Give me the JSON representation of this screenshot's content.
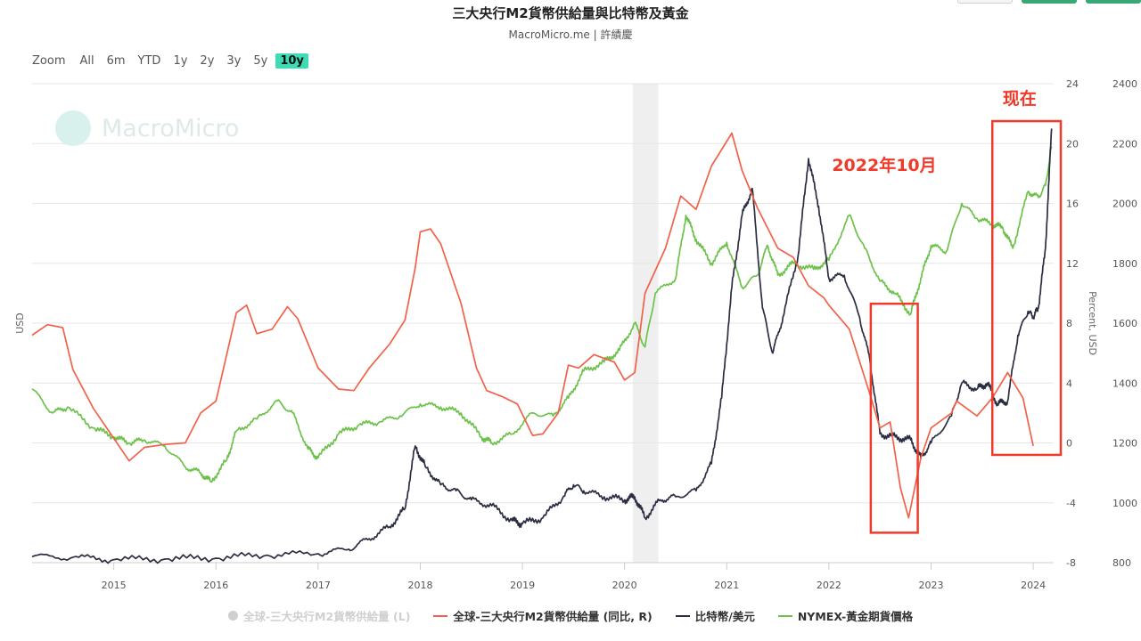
{
  "page": {
    "title": "三大央行M2貨幣供給量與比特幣及黃金",
    "subtitle": "MacroMicro.me | 許績慶",
    "watermark": "MacroMicro"
  },
  "zoom": {
    "label": "Zoom",
    "options": [
      "All",
      "6m",
      "YTD",
      "1y",
      "2y",
      "3y",
      "5y",
      "10y"
    ],
    "active": "10y"
  },
  "legend": [
    {
      "label": "全球-三大央行M2貨幣供給量 (L)",
      "color": "#cfcfcf",
      "enabled": false
    },
    {
      "label": "全球-三大央行M2貨幣供給量 (同比, R)",
      "color": "#f0624a",
      "enabled": true
    },
    {
      "label": "比特幣/美元",
      "color": "#2b2d42",
      "enabled": true
    },
    {
      "label": "NYMEX-黃金期貨價格",
      "color": "#6cc24a",
      "enabled": true
    }
  ],
  "annotations": {
    "oct2022_label": "2022年10月",
    "now_label": "现在",
    "color": "#f03a2a"
  },
  "chart_data": {
    "type": "line",
    "x_range": [
      2014.2,
      2024.2
    ],
    "x_ticks": [
      "2015",
      "2016",
      "2017",
      "2018",
      "2019",
      "2020",
      "2021",
      "2022",
      "2023",
      "2024"
    ],
    "left_axis_label": "USD",
    "right_axis_label": "Percent, USD",
    "percent_axis": {
      "min": -8,
      "max": 24,
      "ticks": [
        "24",
        "20",
        "16",
        "12",
        "8",
        "4",
        "0",
        "-4",
        "-8"
      ]
    },
    "usd_axis": {
      "min": 800,
      "max": 2400,
      "ticks": [
        "2400",
        "2200",
        "2000",
        "1800",
        "1600",
        "1400",
        "1200",
        "1000",
        "800"
      ]
    },
    "shaded_period": [
      2020.08,
      2020.33
    ],
    "series": [
      {
        "name": "全球-三大央行M2貨幣供給量 (同比, R)",
        "axis": "percent",
        "color": "#f0624a",
        "points": [
          [
            2014.2,
            7.2
          ],
          [
            2014.35,
            7.9
          ],
          [
            2014.5,
            7.7
          ],
          [
            2014.6,
            4.9
          ],
          [
            2014.8,
            2.3
          ],
          [
            2015.0,
            0.3
          ],
          [
            2015.15,
            -1.2
          ],
          [
            2015.3,
            -0.3
          ],
          [
            2015.5,
            -0.1
          ],
          [
            2015.7,
            0
          ],
          [
            2015.85,
            2.0
          ],
          [
            2016.0,
            2.8
          ],
          [
            2016.2,
            8.7
          ],
          [
            2016.3,
            9.2
          ],
          [
            2016.4,
            7.3
          ],
          [
            2016.55,
            7.6
          ],
          [
            2016.7,
            9.1
          ],
          [
            2016.8,
            8.3
          ],
          [
            2017.0,
            5.0
          ],
          [
            2017.2,
            3.6
          ],
          [
            2017.35,
            3.5
          ],
          [
            2017.5,
            5.0
          ],
          [
            2017.7,
            6.6
          ],
          [
            2017.85,
            8.2
          ],
          [
            2017.95,
            11.7
          ],
          [
            2018.0,
            14.1
          ],
          [
            2018.1,
            14.3
          ],
          [
            2018.2,
            13.3
          ],
          [
            2018.4,
            9.3
          ],
          [
            2018.55,
            5.0
          ],
          [
            2018.65,
            3.5
          ],
          [
            2018.8,
            3.1
          ],
          [
            2018.95,
            2.6
          ],
          [
            2019.1,
            0.5
          ],
          [
            2019.2,
            0.6
          ],
          [
            2019.35,
            2.0
          ],
          [
            2019.45,
            5.2
          ],
          [
            2019.55,
            5.0
          ],
          [
            2019.7,
            5.9
          ],
          [
            2019.9,
            5.4
          ],
          [
            2020.0,
            4.2
          ],
          [
            2020.1,
            4.7
          ],
          [
            2020.2,
            10.0
          ],
          [
            2020.4,
            13.0
          ],
          [
            2020.55,
            16.5
          ],
          [
            2020.7,
            15.6
          ],
          [
            2020.85,
            18.5
          ],
          [
            2021.05,
            20.7
          ],
          [
            2021.15,
            18.2
          ],
          [
            2021.3,
            15.7
          ],
          [
            2021.5,
            13.0
          ],
          [
            2021.65,
            12.4
          ],
          [
            2021.8,
            10.5
          ],
          [
            2021.95,
            9.7
          ],
          [
            2022.0,
            9.2
          ],
          [
            2022.2,
            7.6
          ],
          [
            2022.4,
            3.3
          ],
          [
            2022.5,
            1.0
          ],
          [
            2022.6,
            1.4
          ],
          [
            2022.7,
            -3.0
          ],
          [
            2022.78,
            -5.0
          ],
          [
            2022.9,
            -1.0
          ],
          [
            2023.0,
            1.0
          ],
          [
            2023.2,
            2.0
          ],
          [
            2023.25,
            2.8
          ],
          [
            2023.45,
            1.8
          ],
          [
            2023.6,
            3.0
          ],
          [
            2023.75,
            4.7
          ],
          [
            2023.9,
            3.0
          ],
          [
            2024.0,
            -0.2
          ]
        ]
      },
      {
        "name": "比特幣/美元",
        "axis": "usd",
        "color": "#2b2d42",
        "points": [
          [
            2014.2,
            820
          ],
          [
            2014.6,
            818
          ],
          [
            2015.0,
            810
          ],
          [
            2015.5,
            812
          ],
          [
            2016.0,
            815
          ],
          [
            2016.5,
            825
          ],
          [
            2017.0,
            830
          ],
          [
            2017.3,
            845
          ],
          [
            2017.5,
            880
          ],
          [
            2017.7,
            920
          ],
          [
            2017.85,
            980
          ],
          [
            2017.95,
            1190
          ],
          [
            2018.05,
            1120
          ],
          [
            2018.2,
            1060
          ],
          [
            2018.35,
            1040
          ],
          [
            2018.5,
            1010
          ],
          [
            2018.7,
            990
          ],
          [
            2018.9,
            940
          ],
          [
            2019.0,
            930
          ],
          [
            2019.2,
            950
          ],
          [
            2019.4,
            1020
          ],
          [
            2019.5,
            1060
          ],
          [
            2019.6,
            1040
          ],
          [
            2019.8,
            1020
          ],
          [
            2020.0,
            1010
          ],
          [
            2020.1,
            1020
          ],
          [
            2020.2,
            950
          ],
          [
            2020.35,
            1010
          ],
          [
            2020.5,
            1020
          ],
          [
            2020.7,
            1040
          ],
          [
            2020.85,
            1130
          ],
          [
            2020.95,
            1350
          ],
          [
            2021.05,
            1720
          ],
          [
            2021.15,
            1960
          ],
          [
            2021.25,
            2050
          ],
          [
            2021.35,
            1650
          ],
          [
            2021.45,
            1500
          ],
          [
            2021.55,
            1620
          ],
          [
            2021.7,
            1830
          ],
          [
            2021.8,
            2150
          ],
          [
            2021.9,
            1990
          ],
          [
            2022.0,
            1750
          ],
          [
            2022.15,
            1760
          ],
          [
            2022.3,
            1620
          ],
          [
            2022.4,
            1480
          ],
          [
            2022.5,
            1230
          ],
          [
            2022.65,
            1220
          ],
          [
            2022.8,
            1210
          ],
          [
            2022.9,
            1150
          ],
          [
            2023.0,
            1200
          ],
          [
            2023.2,
            1290
          ],
          [
            2023.3,
            1400
          ],
          [
            2023.45,
            1380
          ],
          [
            2023.55,
            1400
          ],
          [
            2023.65,
            1330
          ],
          [
            2023.75,
            1340
          ],
          [
            2023.85,
            1560
          ],
          [
            2023.95,
            1640
          ],
          [
            2024.0,
            1620
          ],
          [
            2024.05,
            1650
          ],
          [
            2024.12,
            1850
          ],
          [
            2024.18,
            2250
          ]
        ]
      },
      {
        "name": "NYMEX-黃金期貨價格",
        "axis": "usd",
        "color": "#6cc24a",
        "points": [
          [
            2014.2,
            1380
          ],
          [
            2014.4,
            1300
          ],
          [
            2014.55,
            1320
          ],
          [
            2014.8,
            1250
          ],
          [
            2015.0,
            1220
          ],
          [
            2015.15,
            1200
          ],
          [
            2015.3,
            1210
          ],
          [
            2015.5,
            1190
          ],
          [
            2015.7,
            1120
          ],
          [
            2015.85,
            1100
          ],
          [
            2015.95,
            1070
          ],
          [
            2016.1,
            1140
          ],
          [
            2016.2,
            1240
          ],
          [
            2016.4,
            1280
          ],
          [
            2016.6,
            1340
          ],
          [
            2016.75,
            1300
          ],
          [
            2016.9,
            1180
          ],
          [
            2017.0,
            1150
          ],
          [
            2017.2,
            1230
          ],
          [
            2017.4,
            1260
          ],
          [
            2017.6,
            1270
          ],
          [
            2017.8,
            1290
          ],
          [
            2018.0,
            1330
          ],
          [
            2018.2,
            1320
          ],
          [
            2018.4,
            1300
          ],
          [
            2018.6,
            1220
          ],
          [
            2018.7,
            1200
          ],
          [
            2018.9,
            1230
          ],
          [
            2019.1,
            1300
          ],
          [
            2019.3,
            1290
          ],
          [
            2019.45,
            1350
          ],
          [
            2019.6,
            1440
          ],
          [
            2019.8,
            1470
          ],
          [
            2019.95,
            1510
          ],
          [
            2020.1,
            1600
          ],
          [
            2020.2,
            1520
          ],
          [
            2020.3,
            1700
          ],
          [
            2020.5,
            1750
          ],
          [
            2020.6,
            1960
          ],
          [
            2020.7,
            1880
          ],
          [
            2020.85,
            1800
          ],
          [
            2021.0,
            1870
          ],
          [
            2021.15,
            1720
          ],
          [
            2021.3,
            1760
          ],
          [
            2021.4,
            1860
          ],
          [
            2021.5,
            1760
          ],
          [
            2021.65,
            1800
          ],
          [
            2021.85,
            1780
          ],
          [
            2022.0,
            1810
          ],
          [
            2022.2,
            1960
          ],
          [
            2022.35,
            1850
          ],
          [
            2022.5,
            1740
          ],
          [
            2022.65,
            1700
          ],
          [
            2022.8,
            1630
          ],
          [
            2022.9,
            1750
          ],
          [
            2023.0,
            1860
          ],
          [
            2023.15,
            1840
          ],
          [
            2023.3,
            2000
          ],
          [
            2023.45,
            1950
          ],
          [
            2023.6,
            1930
          ],
          [
            2023.7,
            1920
          ],
          [
            2023.8,
            1850
          ],
          [
            2023.95,
            2040
          ],
          [
            2024.05,
            2020
          ],
          [
            2024.12,
            2060
          ],
          [
            2024.18,
            2190
          ]
        ]
      }
    ]
  }
}
